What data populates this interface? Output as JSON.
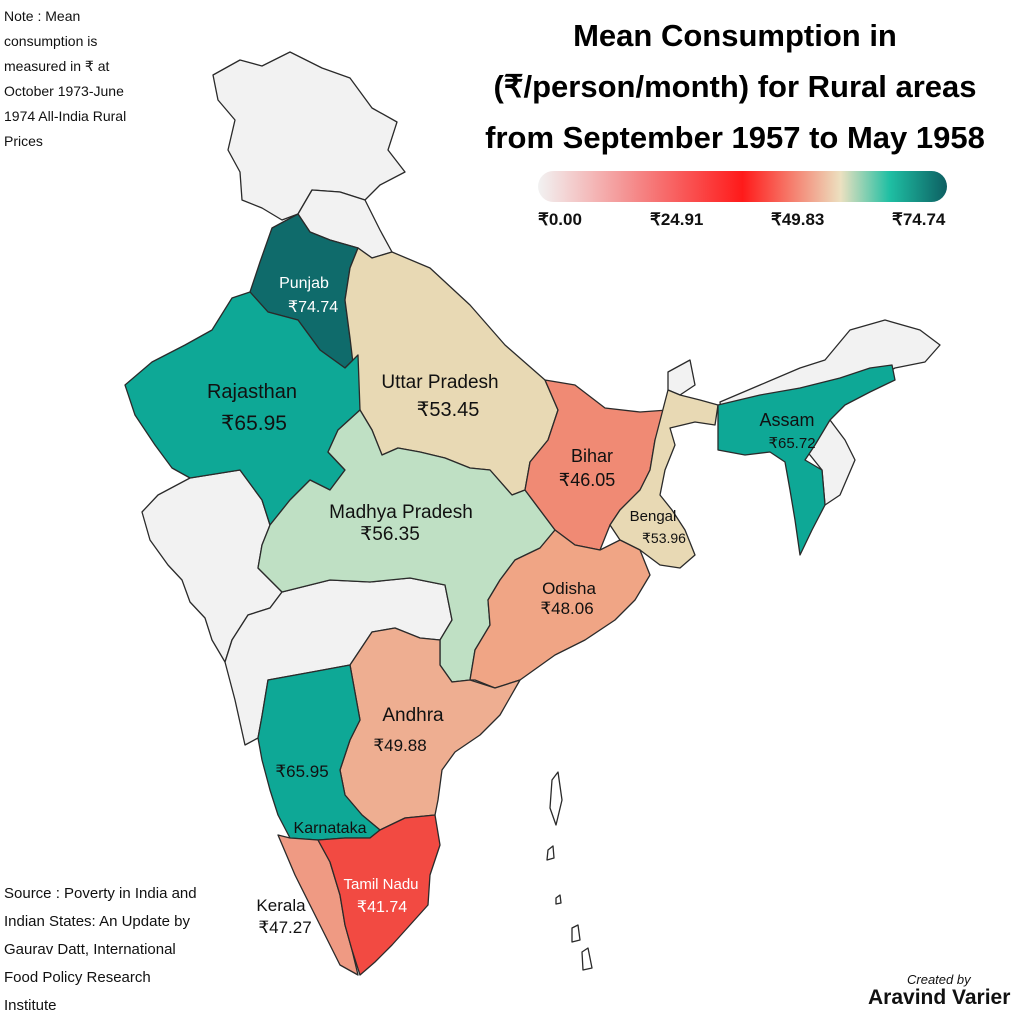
{
  "note": "Note : Mean consumption is measured in ₹ at October 1973-June 1974 All-India Rural Prices",
  "title": "Mean Consumption in (₹/person/month) for Rural areas from September 1957 to May 1958",
  "legend": {
    "ticks": [
      "₹0.00",
      "₹24.91",
      "₹49.83",
      "₹74.74"
    ],
    "colors": [
      "#f2f2f2",
      "#f58080",
      "#ff1a1a",
      "#ece0c0",
      "#1fbfa3",
      "#0d5f62"
    ]
  },
  "source": "Source : Poverty in India and Indian States: An Update by Gaurav Datt, International Food Policy Research Institute",
  "credit": {
    "label": "Created by",
    "author": "Aravind Varier"
  },
  "map": {
    "base_color": "#f2f2f2",
    "states": [
      {
        "name": "Punjab",
        "value": "₹74.74",
        "color": "#0f6b6b"
      },
      {
        "name": "Rajasthan",
        "value": "₹65.95",
        "color": "#0ea896"
      },
      {
        "name": "Uttar Pradesh",
        "value": "₹53.45",
        "color": "#e8d9b4"
      },
      {
        "name": "Assam",
        "value": "₹65.72",
        "color": "#0ea896"
      },
      {
        "name": "Bihar",
        "value": "₹46.05",
        "color": "#f08a74"
      },
      {
        "name": "Bengal",
        "value": "₹53.96",
        "color": "#e8d9b4"
      },
      {
        "name": "Madhya Pradesh",
        "value": "₹56.35",
        "color": "#bfe0c4"
      },
      {
        "name": "Odisha",
        "value": "₹48.06",
        "color": "#f0a585"
      },
      {
        "name": "Andhra",
        "value": "₹49.88",
        "color": "#eeae91"
      },
      {
        "name": "Karnataka",
        "value": "₹65.95",
        "color": "#0ea896"
      },
      {
        "name": "Kerala",
        "value": "₹47.27",
        "color": "#ef9a83"
      },
      {
        "name": "Tamil Nadu",
        "value": "₹41.74",
        "color": "#f24a42"
      }
    ]
  }
}
